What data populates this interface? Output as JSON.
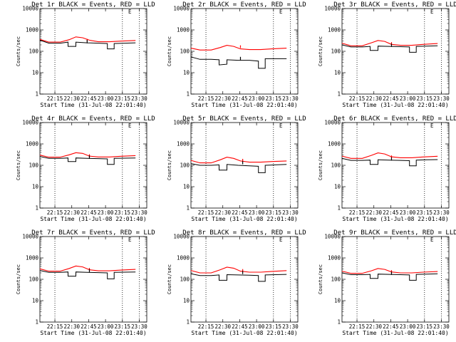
{
  "figure": {
    "ylabel": "Counts/sec",
    "xlabel": "Start Time (31-Jul-08 22:01:40)",
    "xtick_labels": [
      "22:15",
      "22:30",
      "22:45",
      "23:00",
      "23:15",
      "23:30"
    ],
    "ytick_labels": [
      "1",
      "10",
      "100",
      "1000",
      "10000"
    ],
    "corner_letter": "E",
    "series_colors": {
      "events": "#000000",
      "lld": "#ff0000"
    }
  },
  "chart_data": [
    {
      "type": "line",
      "title": "Det 1r BLACK = Events, RED = LLD",
      "xlabel": "Start Time (31-Jul-08 22:01:40)",
      "ylabel": "Counts/sec",
      "x_range_min": [
        0,
        85
      ],
      "ylim": [
        1,
        10000
      ],
      "yscale": "log",
      "events": [
        [
          0,
          330
        ],
        [
          8,
          240
        ],
        [
          18,
          240
        ],
        [
          25,
          270
        ],
        [
          25,
          170
        ],
        [
          32,
          170
        ],
        [
          32,
          270
        ],
        [
          42,
          250
        ],
        [
          52,
          240
        ],
        [
          60,
          230
        ],
        [
          60,
          130
        ],
        [
          66,
          130
        ],
        [
          66,
          230
        ],
        [
          75,
          240
        ],
        [
          85,
          250
        ]
      ],
      "lld": [
        [
          0,
          360
        ],
        [
          8,
          270
        ],
        [
          18,
          270
        ],
        [
          26,
          350
        ],
        [
          32,
          470
        ],
        [
          38,
          430
        ],
        [
          44,
          330
        ],
        [
          52,
          280
        ],
        [
          62,
          280
        ],
        [
          72,
          300
        ],
        [
          85,
          320
        ]
      ],
      "events_spikes": [
        [
          42,
          340
        ]
      ],
      "lld_spikes": [
        [
          42,
          380
        ]
      ]
    },
    {
      "type": "line",
      "title": "Det 2r BLACK = Events, RED = LLD",
      "xlabel": "Start Time (31-Jul-08 22:01:40)",
      "ylabel": "Counts/sec",
      "x_range_min": [
        0,
        85
      ],
      "ylim": [
        1,
        10000
      ],
      "yscale": "log",
      "events": [
        [
          0,
          55
        ],
        [
          8,
          42
        ],
        [
          18,
          42
        ],
        [
          25,
          40
        ],
        [
          25,
          23
        ],
        [
          32,
          25
        ],
        [
          32,
          40
        ],
        [
          42,
          38
        ],
        [
          52,
          38
        ],
        [
          60,
          35
        ],
        [
          60,
          16
        ],
        [
          66,
          16
        ],
        [
          66,
          45
        ],
        [
          75,
          45
        ],
        [
          85,
          45
        ]
      ],
      "lld": [
        [
          0,
          140
        ],
        [
          8,
          115
        ],
        [
          18,
          115
        ],
        [
          26,
          150
        ],
        [
          32,
          190
        ],
        [
          38,
          170
        ],
        [
          44,
          130
        ],
        [
          52,
          120
        ],
        [
          62,
          120
        ],
        [
          72,
          130
        ],
        [
          85,
          140
        ]
      ],
      "events_spikes": [
        [
          44,
          55
        ]
      ],
      "lld_spikes": [
        [
          44,
          190
        ]
      ]
    },
    {
      "type": "line",
      "title": "Det 3r BLACK = Events, RED = LLD",
      "xlabel": "Start Time (31-Jul-08 22:01:40)",
      "ylabel": "Counts/sec",
      "x_range_min": [
        0,
        85
      ],
      "ylim": [
        1,
        10000
      ],
      "yscale": "log",
      "events": [
        [
          0,
          200
        ],
        [
          8,
          160
        ],
        [
          18,
          160
        ],
        [
          25,
          170
        ],
        [
          25,
          110
        ],
        [
          32,
          110
        ],
        [
          32,
          175
        ],
        [
          42,
          170
        ],
        [
          52,
          165
        ],
        [
          60,
          160
        ],
        [
          60,
          90
        ],
        [
          66,
          90
        ],
        [
          66,
          170
        ],
        [
          75,
          175
        ],
        [
          85,
          180
        ]
      ],
      "lld": [
        [
          0,
          240
        ],
        [
          8,
          180
        ],
        [
          18,
          180
        ],
        [
          26,
          250
        ],
        [
          32,
          320
        ],
        [
          38,
          290
        ],
        [
          44,
          210
        ],
        [
          52,
          190
        ],
        [
          62,
          190
        ],
        [
          72,
          210
        ],
        [
          85,
          230
        ]
      ],
      "events_spikes": [
        [
          44,
          230
        ]
      ],
      "lld_spikes": [
        [
          44,
          270
        ]
      ]
    },
    {
      "type": "line",
      "title": "Det 4r BLACK = Events, RED = LLD",
      "xlabel": "Start Time (31-Jul-08 22:01:40)",
      "ylabel": "Counts/sec",
      "x_range_min": [
        0,
        85
      ],
      "ylim": [
        1,
        10000
      ],
      "yscale": "log",
      "events": [
        [
          0,
          260
        ],
        [
          8,
          210
        ],
        [
          18,
          210
        ],
        [
          25,
          220
        ],
        [
          25,
          150
        ],
        [
          32,
          150
        ],
        [
          32,
          220
        ],
        [
          42,
          210
        ],
        [
          52,
          205
        ],
        [
          60,
          200
        ],
        [
          60,
          110
        ],
        [
          66,
          110
        ],
        [
          66,
          210
        ],
        [
          75,
          215
        ],
        [
          85,
          220
        ]
      ],
      "lld": [
        [
          0,
          300
        ],
        [
          8,
          240
        ],
        [
          18,
          240
        ],
        [
          26,
          310
        ],
        [
          32,
          390
        ],
        [
          38,
          360
        ],
        [
          44,
          270
        ],
        [
          52,
          245
        ],
        [
          62,
          245
        ],
        [
          72,
          265
        ],
        [
          85,
          285
        ]
      ],
      "events_spikes": [
        [
          44,
          290
        ]
      ],
      "lld_spikes": [
        [
          44,
          330
        ]
      ]
    },
    {
      "type": "line",
      "title": "Det 5r BLACK = Events, RED = LLD",
      "xlabel": "Start Time (31-Jul-08 22:01:40)",
      "ylabel": "Counts/sec",
      "x_range_min": [
        0,
        85
      ],
      "ylim": [
        1,
        10000
      ],
      "yscale": "log",
      "events": [
        [
          0,
          120
        ],
        [
          8,
          100
        ],
        [
          18,
          100
        ],
        [
          25,
          105
        ],
        [
          25,
          60
        ],
        [
          32,
          60
        ],
        [
          32,
          110
        ],
        [
          42,
          100
        ],
        [
          52,
          95
        ],
        [
          60,
          90
        ],
        [
          60,
          45
        ],
        [
          66,
          45
        ],
        [
          66,
          100
        ],
        [
          75,
          105
        ],
        [
          85,
          110
        ]
      ],
      "lld": [
        [
          0,
          170
        ],
        [
          8,
          130
        ],
        [
          18,
          130
        ],
        [
          26,
          180
        ],
        [
          32,
          240
        ],
        [
          38,
          210
        ],
        [
          44,
          160
        ],
        [
          52,
          140
        ],
        [
          62,
          140
        ],
        [
          72,
          150
        ],
        [
          85,
          160
        ]
      ],
      "events_spikes": [
        [
          46,
          160
        ]
      ],
      "lld_spikes": [
        [
          46,
          200
        ]
      ]
    },
    {
      "type": "line",
      "title": "Det 6r BLACK = Events, RED = LLD",
      "xlabel": "Start Time (31-Jul-08 22:01:40)",
      "ylabel": "Counts/sec",
      "x_range_min": [
        0,
        85
      ],
      "ylim": [
        1,
        10000
      ],
      "yscale": "log",
      "events": [
        [
          0,
          210
        ],
        [
          8,
          170
        ],
        [
          18,
          170
        ],
        [
          25,
          175
        ],
        [
          25,
          110
        ],
        [
          32,
          110
        ],
        [
          32,
          180
        ],
        [
          42,
          175
        ],
        [
          52,
          170
        ],
        [
          60,
          165
        ],
        [
          60,
          95
        ],
        [
          66,
          95
        ],
        [
          66,
          175
        ],
        [
          75,
          180
        ],
        [
          85,
          185
        ]
      ],
      "lld": [
        [
          0,
          270
        ],
        [
          8,
          210
        ],
        [
          18,
          210
        ],
        [
          26,
          290
        ],
        [
          32,
          380
        ],
        [
          38,
          340
        ],
        [
          44,
          250
        ],
        [
          52,
          225
        ],
        [
          62,
          225
        ],
        [
          72,
          245
        ],
        [
          85,
          265
        ]
      ],
      "events_spikes": [
        [
          44,
          240
        ]
      ],
      "lld_spikes": [
        [
          44,
          290
        ]
      ]
    },
    {
      "type": "line",
      "title": "Det 7r BLACK = Events, RED = LLD",
      "xlabel": "Start Time (31-Jul-08 22:01:40)",
      "ylabel": "Counts/sec",
      "x_range_min": [
        0,
        85
      ],
      "ylim": [
        1,
        10000
      ],
      "yscale": "log",
      "events": [
        [
          0,
          260
        ],
        [
          8,
          210
        ],
        [
          18,
          210
        ],
        [
          25,
          220
        ],
        [
          25,
          140
        ],
        [
          32,
          140
        ],
        [
          32,
          220
        ],
        [
          42,
          210
        ],
        [
          52,
          205
        ],
        [
          60,
          200
        ],
        [
          60,
          105
        ],
        [
          66,
          105
        ],
        [
          66,
          210
        ],
        [
          75,
          215
        ],
        [
          85,
          220
        ]
      ],
      "lld": [
        [
          0,
          310
        ],
        [
          8,
          240
        ],
        [
          18,
          240
        ],
        [
          26,
          320
        ],
        [
          32,
          420
        ],
        [
          38,
          380
        ],
        [
          44,
          280
        ],
        [
          52,
          250
        ],
        [
          62,
          250
        ],
        [
          72,
          270
        ],
        [
          85,
          290
        ]
      ],
      "events_spikes": [
        [
          44,
          300
        ]
      ],
      "lld_spikes": [
        [
          44,
          340
        ]
      ]
    },
    {
      "type": "line",
      "title": "Det 8r BLACK = Events, RED = LLD",
      "xlabel": "Start Time (31-Jul-08 22:01:40)",
      "ylabel": "Counts/sec",
      "x_range_min": [
        0,
        85
      ],
      "ylim": [
        1,
        10000
      ],
      "yscale": "log",
      "events": [
        [
          0,
          180
        ],
        [
          8,
          150
        ],
        [
          18,
          150
        ],
        [
          25,
          160
        ],
        [
          25,
          90
        ],
        [
          32,
          90
        ],
        [
          32,
          165
        ],
        [
          42,
          160
        ],
        [
          52,
          155
        ],
        [
          60,
          150
        ],
        [
          60,
          80
        ],
        [
          66,
          80
        ],
        [
          66,
          160
        ],
        [
          75,
          165
        ],
        [
          85,
          170
        ]
      ],
      "lld": [
        [
          0,
          260
        ],
        [
          8,
          200
        ],
        [
          18,
          200
        ],
        [
          26,
          280
        ],
        [
          32,
          370
        ],
        [
          38,
          330
        ],
        [
          44,
          240
        ],
        [
          52,
          215
        ],
        [
          62,
          215
        ],
        [
          72,
          235
        ],
        [
          85,
          255
        ]
      ],
      "events_spikes": [
        [
          46,
          250
        ]
      ],
      "lld_spikes": [
        [
          46,
          300
        ]
      ]
    },
    {
      "type": "line",
      "title": "Det 9r BLACK = Events, RED = LLD",
      "xlabel": "Start Time (31-Jul-08 22:01:40)",
      "ylabel": "Counts/sec",
      "x_range_min": [
        0,
        85
      ],
      "ylim": [
        1,
        10000
      ],
      "yscale": "log",
      "events": [
        [
          0,
          200
        ],
        [
          8,
          165
        ],
        [
          18,
          165
        ],
        [
          25,
          170
        ],
        [
          25,
          110
        ],
        [
          32,
          110
        ],
        [
          32,
          175
        ],
        [
          42,
          170
        ],
        [
          52,
          165
        ],
        [
          60,
          160
        ],
        [
          60,
          90
        ],
        [
          66,
          90
        ],
        [
          66,
          170
        ],
        [
          75,
          175
        ],
        [
          85,
          180
        ]
      ],
      "lld": [
        [
          0,
          240
        ],
        [
          8,
          190
        ],
        [
          18,
          190
        ],
        [
          26,
          250
        ],
        [
          32,
          320
        ],
        [
          38,
          290
        ],
        [
          44,
          220
        ],
        [
          52,
          200
        ],
        [
          62,
          200
        ],
        [
          72,
          215
        ],
        [
          85,
          230
        ]
      ],
      "events_spikes": [
        [
          44,
          230
        ]
      ],
      "lld_spikes": [
        [
          44,
          270
        ]
      ]
    }
  ]
}
